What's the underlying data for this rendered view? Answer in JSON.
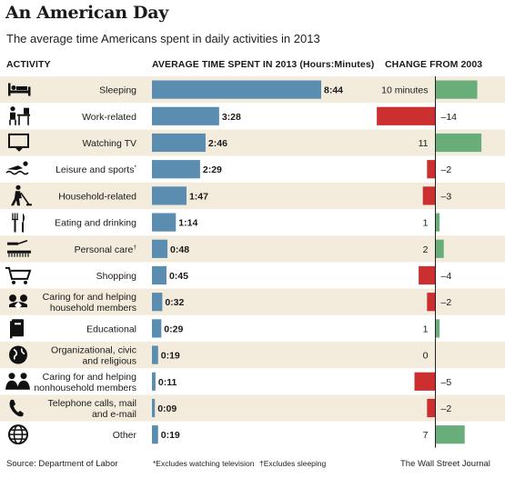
{
  "title": "An American Day",
  "subtitle": "The average time Americans spent in daily activities in 2013",
  "headers": {
    "activity": "ACTIVITY",
    "time": "AVERAGE TIME SPENT IN 2013 (Hours:Minutes)",
    "change": "CHANGE FROM 2003"
  },
  "footer": {
    "source": "Source: Department of Labor",
    "note1": "*Excludes watching television",
    "note2": "†Excludes sleeping",
    "credit": "The Wall Street Journal"
  },
  "colors": {
    "band": "#f3ecdc",
    "time_bar": "#5b8db1",
    "increase": "#69ad7b",
    "decrease": "#cc2f2f",
    "divider": "#222222"
  },
  "chart_data": {
    "type": "bar",
    "time_unit": "Hours:Minutes",
    "change_unit": "minutes",
    "activities": [
      {
        "label": "Sleeping",
        "time_label": "8:44",
        "minutes": 524,
        "change": 10,
        "change_label": "10 minutes",
        "icon": "bed-icon"
      },
      {
        "label": "Work-related",
        "time_label": "3:28",
        "minutes": 208,
        "change": -14,
        "change_label": "–14",
        "icon": "desk-worker-icon"
      },
      {
        "label": "Watching TV",
        "time_label": "2:46",
        "minutes": 166,
        "change": 11,
        "change_label": "11",
        "icon": "tv-icon"
      },
      {
        "label": "Leisure and sports*",
        "time_label": "2:29",
        "minutes": 149,
        "change": -2,
        "change_label": "–2",
        "icon": "swimmer-icon"
      },
      {
        "label": "Household-related",
        "time_label": "1:47",
        "minutes": 107,
        "change": -3,
        "change_label": "–3",
        "icon": "sweeping-person-icon"
      },
      {
        "label": "Eating and drinking",
        "time_label": "1:14",
        "minutes": 74,
        "change": 1,
        "change_label": "1",
        "icon": "fork-knife-icon"
      },
      {
        "label": "Personal care†",
        "time_label": "0:48",
        "minutes": 48,
        "change": 2,
        "change_label": "2",
        "icon": "razor-comb-icon"
      },
      {
        "label": "Shopping",
        "time_label": "0:45",
        "minutes": 45,
        "change": -4,
        "change_label": "–4",
        "icon": "shopping-cart-icon"
      },
      {
        "label": "Caring for and helping household members",
        "lines": [
          "Caring for and helping",
          "household members"
        ],
        "time_label": "0:32",
        "minutes": 32,
        "change": -2,
        "change_label": "–2",
        "icon": "family-icon"
      },
      {
        "label": "Educational",
        "time_label": "0:29",
        "minutes": 29,
        "change": 1,
        "change_label": "1",
        "icon": "book-icon"
      },
      {
        "label": "Organizational, civic and religious",
        "lines": [
          "Organizational, civic",
          "and religious"
        ],
        "time_label": "0:19",
        "minutes": 19,
        "change": 0,
        "change_label": "0",
        "icon": "globe-icon"
      },
      {
        "label": "Caring for and helping nonhousehold members",
        "lines": [
          "Caring for and helping",
          "nonhousehold members"
        ],
        "time_label": "0:11",
        "minutes": 11,
        "change": -5,
        "change_label": "–5",
        "icon": "people-icon"
      },
      {
        "label": "Telephone calls, mail and e-mail",
        "lines": [
          "Telephone calls, mail",
          "and e-mail"
        ],
        "time_label": "0:09",
        "minutes": 9,
        "change": -2,
        "change_label": "–2",
        "icon": "phone-icon"
      },
      {
        "label": "Other",
        "time_label": "0:19",
        "minutes": 19,
        "change": 7,
        "change_label": "7",
        "icon": "globe-grid-icon"
      }
    ]
  }
}
